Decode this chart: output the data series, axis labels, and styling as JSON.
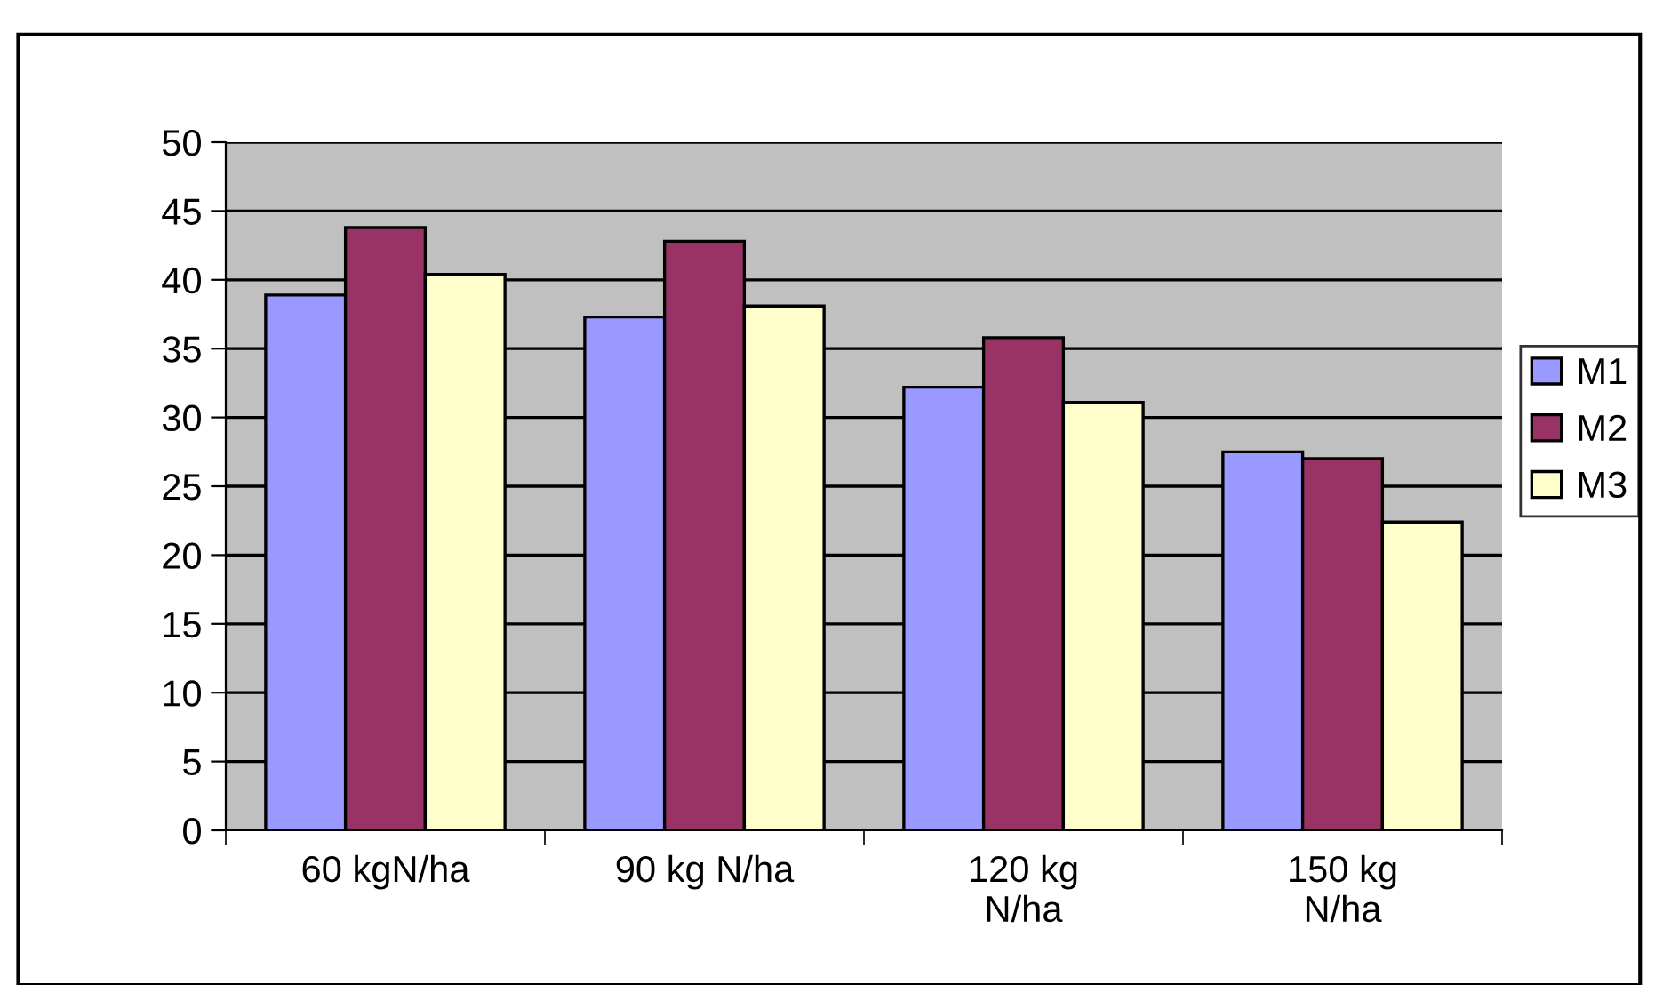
{
  "chart_data": {
    "type": "bar",
    "categories": [
      "60 kgN/ha",
      "90 kg N/ha",
      "120 kg\nN/ha",
      "150 kg\nN/ha"
    ],
    "series": [
      {
        "name": "M1",
        "color": "#9999ff",
        "values": [
          38.9,
          37.3,
          32.2,
          27.5
        ]
      },
      {
        "name": "M2",
        "color": "#993366",
        "values": [
          43.8,
          42.8,
          35.8,
          27.0
        ]
      },
      {
        "name": "M3",
        "color": "#ffffcc",
        "values": [
          40.4,
          38.1,
          31.1,
          22.4
        ]
      }
    ],
    "ylim": [
      0,
      50
    ],
    "yticks": [
      0,
      5,
      10,
      15,
      20,
      25,
      30,
      35,
      40,
      45,
      50
    ],
    "grid": "y",
    "legend": "right"
  }
}
